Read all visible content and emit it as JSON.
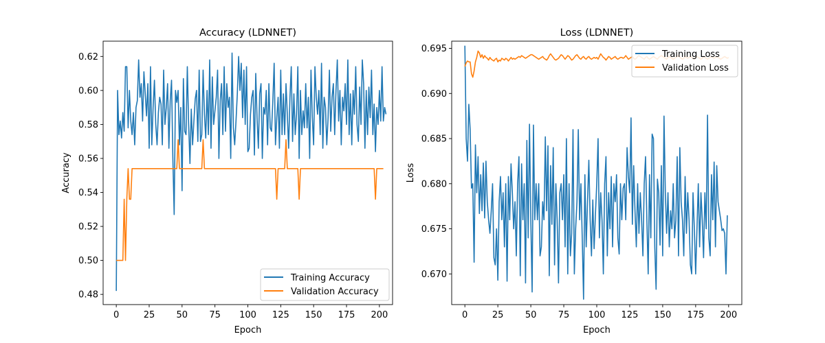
{
  "chart_data": [
    {
      "type": "line",
      "title": "Accuracy (LDNNET)",
      "xlabel": "Epoch",
      "ylabel": "Accuracy",
      "xlim": [
        -10,
        210
      ],
      "ylim": [
        0.474,
        0.629
      ],
      "xticks": [
        0,
        25,
        50,
        75,
        100,
        125,
        150,
        175,
        200
      ],
      "yticks": [
        0.48,
        0.5,
        0.52,
        0.54,
        0.56,
        0.58,
        0.6,
        0.62
      ],
      "grid": false,
      "legend_position": "lower-right",
      "series": [
        {
          "name": "Training Accuracy",
          "color": "#1f77b4",
          "values": [
            0.482,
            0.6,
            0.574,
            0.582,
            0.572,
            0.587,
            0.576,
            0.614,
            0.614,
            0.578,
            0.6,
            0.582,
            0.574,
            0.587,
            0.568,
            0.59,
            0.594,
            0.618,
            0.596,
            0.604,
            0.582,
            0.611,
            0.598,
            0.585,
            0.604,
            0.566,
            0.614,
            0.568,
            0.59,
            0.606,
            0.58,
            0.568,
            0.587,
            0.596,
            0.592,
            0.568,
            0.612,
            0.58,
            0.59,
            0.604,
            0.566,
            0.594,
            0.606,
            0.56,
            0.527,
            0.6,
            0.593,
            0.6,
            0.568,
            0.59,
            0.541,
            0.607,
            0.576,
            0.574,
            0.614,
            0.58,
            0.557,
            0.589,
            0.568,
            0.582,
            0.595,
            0.6,
            0.57,
            0.612,
            0.57,
            0.574,
            0.612,
            0.586,
            0.572,
            0.6,
            0.574,
            0.618,
            0.566,
            0.608,
            0.58,
            0.588,
            0.596,
            0.612,
            0.56,
            0.594,
            0.604,
            0.574,
            0.614,
            0.576,
            0.604,
            0.59,
            0.596,
            0.56,
            0.622,
            0.578,
            0.568,
            0.582,
            0.598,
            0.62,
            0.6,
            0.616,
            0.584,
            0.612,
            0.58,
            0.614,
            0.564,
            0.566,
            0.586,
            0.596,
            0.6,
            0.562,
            0.61,
            0.584,
            0.566,
            0.598,
            0.604,
            0.56,
            0.59,
            0.586,
            0.6,
            0.568,
            0.604,
            0.578,
            0.576,
            0.594,
            0.616,
            0.568,
            0.584,
            0.596,
            0.566,
            0.612,
            0.574,
            0.598,
            0.574,
            0.604,
            0.586,
            0.566,
            0.596,
            0.614,
            0.57,
            0.598,
            0.574,
            0.586,
            0.614,
            0.56,
            0.6,
            0.574,
            0.588,
            0.578,
            0.604,
            0.578,
            0.596,
            0.56,
            0.612,
            0.584,
            0.568,
            0.614,
            0.596,
            0.586,
            0.6,
            0.574,
            0.616,
            0.566,
            0.596,
            0.59,
            0.568,
            0.584,
            0.612,
            0.576,
            0.596,
            0.604,
            0.574,
            0.6,
            0.618,
            0.582,
            0.6,
            0.568,
            0.596,
            0.588,
            0.604,
            0.58,
            0.618,
            0.574,
            0.598,
            0.568,
            0.6,
            0.586,
            0.614,
            0.58,
            0.57,
            0.602,
            0.58,
            0.618,
            0.604,
            0.566,
            0.6,
            0.574,
            0.602,
            0.584,
            0.612,
            0.574,
            0.592,
            0.564,
            0.59,
            0.58,
            0.6,
            0.582,
            0.614,
            0.582,
            0.59,
            0.586
          ]
        },
        {
          "name": "Validation Accuracy",
          "color": "#ff7f0e",
          "values": [
            0.5,
            0.5,
            0.5,
            0.5,
            0.5,
            0.5,
            0.536,
            0.5,
            0.536,
            0.554,
            0.536,
            0.536,
            0.554,
            0.554,
            0.554,
            0.554,
            0.554,
            0.554,
            0.554,
            0.554,
            0.554,
            0.554,
            0.554,
            0.554,
            0.554,
            0.554,
            0.554,
            0.554,
            0.554,
            0.554,
            0.554,
            0.554,
            0.554,
            0.554,
            0.554,
            0.554,
            0.554,
            0.554,
            0.554,
            0.554,
            0.554,
            0.554,
            0.554,
            0.554,
            0.554,
            0.554,
            0.554,
            0.571,
            0.554,
            0.554,
            0.554,
            0.554,
            0.554,
            0.554,
            0.554,
            0.554,
            0.554,
            0.554,
            0.554,
            0.554,
            0.554,
            0.554,
            0.554,
            0.554,
            0.554,
            0.554,
            0.571,
            0.554,
            0.554,
            0.554,
            0.554,
            0.554,
            0.554,
            0.554,
            0.554,
            0.554,
            0.554,
            0.554,
            0.554,
            0.554,
            0.554,
            0.554,
            0.554,
            0.554,
            0.554,
            0.554,
            0.554,
            0.554,
            0.554,
            0.554,
            0.554,
            0.554,
            0.554,
            0.554,
            0.554,
            0.554,
            0.554,
            0.554,
            0.554,
            0.554,
            0.554,
            0.554,
            0.554,
            0.554,
            0.554,
            0.554,
            0.554,
            0.554,
            0.554,
            0.554,
            0.554,
            0.554,
            0.554,
            0.554,
            0.554,
            0.554,
            0.554,
            0.554,
            0.554,
            0.554,
            0.554,
            0.554,
            0.536,
            0.554,
            0.554,
            0.554,
            0.554,
            0.554,
            0.554,
            0.571,
            0.554,
            0.554,
            0.554,
            0.554,
            0.554,
            0.554,
            0.554,
            0.554,
            0.554,
            0.536,
            0.554,
            0.554,
            0.554,
            0.554,
            0.554,
            0.554,
            0.554,
            0.554,
            0.554,
            0.554,
            0.554,
            0.554,
            0.554,
            0.554,
            0.554,
            0.554,
            0.554,
            0.554,
            0.554,
            0.554,
            0.554,
            0.554,
            0.554,
            0.554,
            0.554,
            0.554,
            0.554,
            0.554,
            0.554,
            0.554,
            0.554,
            0.554,
            0.554,
            0.554,
            0.554,
            0.554,
            0.554,
            0.554,
            0.554,
            0.554,
            0.554,
            0.554,
            0.554,
            0.554,
            0.554,
            0.554,
            0.554,
            0.554,
            0.554,
            0.554,
            0.554,
            0.554,
            0.554,
            0.554,
            0.554,
            0.554,
            0.554,
            0.536,
            0.554,
            0.554,
            0.554,
            0.554,
            0.554,
            0.554
          ]
        }
      ]
    },
    {
      "type": "line",
      "title": "Loss (LDNNET)",
      "xlabel": "Epoch",
      "ylabel": "Loss",
      "xlim": [
        -10,
        210
      ],
      "ylim": [
        0.6666,
        0.6958
      ],
      "xticks": [
        0,
        25,
        50,
        75,
        100,
        125,
        150,
        175,
        200
      ],
      "yticks": [
        0.67,
        0.675,
        0.68,
        0.685,
        0.69,
        0.695
      ],
      "grid": false,
      "legend_position": "upper-right",
      "series": [
        {
          "name": "Training Loss",
          "color": "#1f77b4",
          "values": [
            0.6953,
            0.685,
            0.6825,
            0.6888,
            0.686,
            0.6795,
            0.68,
            0.6713,
            0.6843,
            0.679,
            0.683,
            0.6767,
            0.681,
            0.677,
            0.6823,
            0.6762,
            0.6825,
            0.678,
            0.676,
            0.6745,
            0.677,
            0.68,
            0.6718,
            0.671,
            0.675,
            0.6693,
            0.678,
            0.6808,
            0.676,
            0.679,
            0.673,
            0.68,
            0.6692,
            0.6808,
            0.676,
            0.6822,
            0.679,
            0.675,
            0.678,
            0.672,
            0.68,
            0.683,
            0.6698,
            0.6822,
            0.676,
            0.68,
            0.669,
            0.6848,
            0.674,
            0.6866,
            0.676,
            0.668,
            0.6865,
            0.676,
            0.68,
            0.676,
            0.68,
            0.672,
            0.673,
            0.678,
            0.676,
            0.6852,
            0.677,
            0.6842,
            0.6698,
            0.682,
            0.6755,
            0.684,
            0.671,
            0.68,
            0.676,
            0.669,
            0.679,
            0.68,
            0.676,
            0.681,
            0.673,
            0.685,
            0.67,
            0.68,
            0.672,
            0.6745,
            0.686,
            0.67,
            0.675,
            0.678,
            0.686,
            0.676,
            0.68,
            0.674,
            0.6672,
            0.681,
            0.673,
            0.678,
            0.6826,
            0.676,
            0.672,
            0.6782,
            0.6728,
            0.6766,
            0.68,
            0.685,
            0.674,
            0.679,
            0.676,
            0.67,
            0.68,
            0.683,
            0.672,
            0.679,
            0.675,
            0.6808,
            0.673,
            0.68,
            0.678,
            0.681,
            0.674,
            0.6722,
            0.68,
            0.676,
            0.6795,
            0.68,
            0.676,
            0.684,
            0.6808,
            0.679,
            0.6873,
            0.6755,
            0.682,
            0.677,
            0.673,
            0.68,
            0.6745,
            0.679,
            0.676,
            0.672,
            0.68,
            0.683,
            0.676,
            0.67,
            0.681,
            0.674,
            0.6855,
            0.685,
            0.673,
            0.6683,
            0.6805,
            0.679,
            0.6732,
            0.682,
            0.672,
            0.6875,
            0.679,
            0.6745,
            0.679,
            0.673,
            0.677,
            0.675,
            0.68,
            0.674,
            0.676,
            0.683,
            0.672,
            0.684,
            0.678,
            0.676,
            0.672,
            0.6808,
            0.6745,
            0.679,
            0.676,
            0.671,
            0.67,
            0.679,
            0.675,
            0.67,
            0.675,
            0.68,
            0.673,
            0.679,
            0.676,
            0.6718,
            0.679,
            0.675,
            0.6876,
            0.674,
            0.672,
            0.681,
            0.676,
            0.6824,
            0.673,
            0.682,
            0.678,
            0.677,
            0.676,
            0.6748,
            0.675,
            0.6745,
            0.67,
            0.6765
          ]
        },
        {
          "name": "Validation Loss",
          "color": "#ff7f0e",
          "values": [
            0.693,
            0.6934,
            0.6936,
            0.6935,
            0.6935,
            0.6922,
            0.6918,
            0.6925,
            0.6935,
            0.694,
            0.6947,
            0.6945,
            0.694,
            0.6943,
            0.6939,
            0.6942,
            0.694,
            0.6939,
            0.6937,
            0.694,
            0.6938,
            0.6937,
            0.6936,
            0.6938,
            0.6939,
            0.6935,
            0.6937,
            0.6936,
            0.6939,
            0.6938,
            0.6937,
            0.6939,
            0.6938,
            0.6936,
            0.6938,
            0.694,
            0.6938,
            0.6939,
            0.6938,
            0.6939,
            0.694,
            0.6941,
            0.694,
            0.6942,
            0.6941,
            0.694,
            0.6939,
            0.694,
            0.6941,
            0.6942,
            0.6943,
            0.6943,
            0.6942,
            0.6941,
            0.694,
            0.6939,
            0.6938,
            0.6939,
            0.694,
            0.6941,
            0.6939,
            0.6938,
            0.6937,
            0.6939,
            0.6942,
            0.6944,
            0.6942,
            0.694,
            0.6938,
            0.6937,
            0.6938,
            0.6939,
            0.6941,
            0.6943,
            0.6942,
            0.694,
            0.6938,
            0.694,
            0.6942,
            0.6941,
            0.6939,
            0.6937,
            0.6938,
            0.694,
            0.6942,
            0.6943,
            0.6941,
            0.6939,
            0.6938,
            0.694,
            0.6941,
            0.6939,
            0.6938,
            0.694,
            0.6941,
            0.6939,
            0.6938,
            0.6939,
            0.694,
            0.6939,
            0.694,
            0.6938,
            0.6941,
            0.6944,
            0.6942,
            0.694,
            0.6939,
            0.6937,
            0.6939,
            0.6941,
            0.694,
            0.6938,
            0.6939,
            0.694,
            0.6941,
            0.6939,
            0.6938,
            0.6939,
            0.694,
            0.694,
            0.6939,
            0.694,
            0.6942,
            0.694,
            0.6938,
            0.6939,
            0.694,
            0.6941,
            0.6939,
            0.6938,
            0.6939,
            0.6941,
            0.6942,
            0.6941,
            0.694,
            0.6939,
            0.6938,
            0.694,
            0.6941,
            0.6939,
            0.6938,
            0.6939,
            0.694,
            0.6941,
            0.694,
            0.6939,
            0.6938,
            0.694,
            0.6941,
            0.6942,
            0.6941,
            0.694,
            0.6939,
            0.6938,
            0.694,
            0.6941,
            0.694,
            0.6939,
            0.6938,
            0.6939,
            0.694,
            0.6941,
            0.6942,
            0.694,
            0.6939,
            0.6938,
            0.6939,
            0.6941,
            0.694,
            0.6939,
            0.694,
            0.6941,
            0.694,
            0.6939,
            0.6938,
            0.694,
            0.6941,
            0.694,
            0.6939,
            0.6938,
            0.6939,
            0.6941,
            0.694,
            0.6939,
            0.6938,
            0.6939,
            0.694,
            0.6941,
            0.694,
            0.6939,
            0.694,
            0.6941,
            0.694,
            0.6939,
            0.6938,
            0.6939,
            0.694,
            0.6941,
            0.694,
            0.6939,
            0.694
          ]
        }
      ]
    }
  ]
}
